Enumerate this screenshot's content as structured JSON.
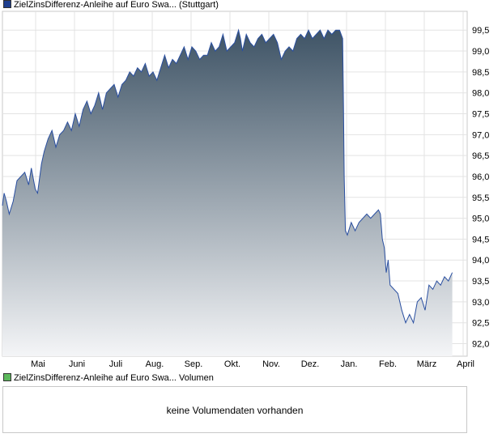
{
  "legend": {
    "price_label": "ZielZinsDifferenz-Anleihe auf Euro Swa... (Stuttgart)",
    "price_color": "#1f3f8f",
    "volume_label": "ZielZinsDifferenz-Anleihe auf Euro Swa... Volumen",
    "volume_color": "#5cb85c"
  },
  "volume": {
    "message": "keine Volumendaten vorhanden"
  },
  "chart_data": {
    "type": "area",
    "title": "",
    "xlabel": "",
    "ylabel": "",
    "ylim": [
      91.7,
      99.95
    ],
    "y_ticks": [
      "92,0",
      "92,5",
      "93,0",
      "93,5",
      "94,0",
      "94,5",
      "95,0",
      "95,5",
      "96,0",
      "96,5",
      "97,0",
      "97,5",
      "98,0",
      "98,5",
      "99,0",
      "99,5"
    ],
    "x_ticks": [
      "Mai",
      "Juni",
      "Juli",
      "Aug.",
      "Sep.",
      "Okt.",
      "Nov.",
      "Dez.",
      "Jan.",
      "Feb.",
      "März",
      "April"
    ],
    "grid": true,
    "line_color": "#2a4fa0",
    "fill_top_color": "#3f5466",
    "fill_bottom_color": "#f4f5f7",
    "series": [
      {
        "x": [
          0,
          0.07,
          0.13,
          0.2,
          0.3,
          0.4,
          0.5,
          0.6,
          0.7,
          0.77,
          0.87,
          0.93,
          1.03,
          1.1,
          1.2,
          1.3,
          1.4,
          1.5,
          1.6,
          1.7,
          1.8,
          1.9,
          2.0,
          2.1,
          2.2,
          2.3,
          2.4,
          2.5,
          2.6,
          2.7,
          2.8,
          2.9,
          3.0,
          3.1,
          3.2,
          3.3,
          3.4,
          3.5,
          3.6,
          3.7,
          3.8,
          3.9,
          4.0,
          4.1,
          4.2,
          4.3,
          4.4,
          4.5,
          4.6,
          4.7,
          4.8,
          4.9,
          5.0,
          5.1,
          5.2,
          5.3,
          5.4,
          5.5,
          5.6,
          5.7,
          5.8,
          5.9,
          6.0,
          6.1,
          6.15,
          6.2,
          6.3,
          6.4,
          6.5,
          6.6,
          6.7,
          6.8,
          6.9,
          7.0,
          7.1,
          7.2,
          7.3,
          7.4,
          7.5,
          7.6,
          7.7,
          7.8,
          7.9,
          8.0,
          8.1,
          8.2,
          8.3,
          8.4,
          8.5,
          8.6,
          8.7,
          8.78,
          8.8,
          8.82,
          8.85,
          8.9,
          9.0,
          9.1,
          9.2,
          9.3,
          9.4,
          9.5,
          9.6,
          9.7,
          9.75,
          9.8,
          9.85,
          9.9,
          9.95,
          10.0,
          10.1,
          10.2,
          10.3,
          10.4,
          10.5,
          10.6,
          10.7,
          10.8,
          10.9,
          11.0,
          11.1,
          11.2,
          11.3,
          11.4,
          11.5,
          11.6
        ],
        "y": [
          95.3,
          95.6,
          95.4,
          95.1,
          95.4,
          95.9,
          96.0,
          96.1,
          95.8,
          96.2,
          95.7,
          95.6,
          96.3,
          96.6,
          96.9,
          97.1,
          96.7,
          97.0,
          97.1,
          97.3,
          97.1,
          97.5,
          97.2,
          97.6,
          97.8,
          97.5,
          97.7,
          98.0,
          97.6,
          98.0,
          98.1,
          98.2,
          97.9,
          98.2,
          98.3,
          98.5,
          98.4,
          98.6,
          98.5,
          98.7,
          98.4,
          98.5,
          98.3,
          98.6,
          98.9,
          98.6,
          98.8,
          98.7,
          98.9,
          99.1,
          98.8,
          99.1,
          99.0,
          98.8,
          98.9,
          98.9,
          99.2,
          99.0,
          99.1,
          99.4,
          99.0,
          99.1,
          99.2,
          99.5,
          99.3,
          99.0,
          99.4,
          99.2,
          99.1,
          99.3,
          99.4,
          99.2,
          99.3,
          99.4,
          99.2,
          98.8,
          99.0,
          99.1,
          99.0,
          99.3,
          99.4,
          99.3,
          99.5,
          99.3,
          99.4,
          99.5,
          99.3,
          99.5,
          99.4,
          99.5,
          99.5,
          99.3,
          97.7,
          96.0,
          94.7,
          94.6,
          94.9,
          94.7,
          94.9,
          95.0,
          95.1,
          95.0,
          95.1,
          95.2,
          95.1,
          94.5,
          94.3,
          93.7,
          94.0,
          93.4,
          93.3,
          93.2,
          92.8,
          92.5,
          92.7,
          92.5,
          93.0,
          93.1,
          92.8,
          93.4,
          93.3,
          93.5,
          93.4,
          93.6,
          93.5,
          93.7
        ]
      }
    ]
  }
}
